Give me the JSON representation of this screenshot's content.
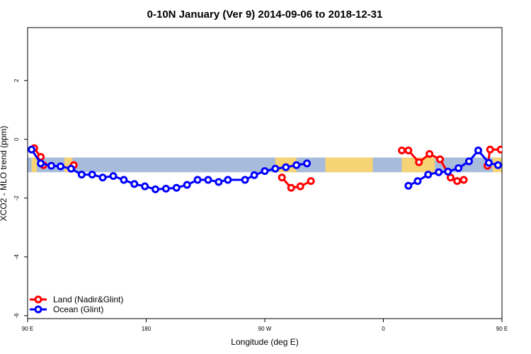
{
  "chart_data": {
    "type": "line",
    "title": "0-10N January (Ver 9)   2014-09-06 to 2018-12-31",
    "xlabel": "Longitude (deg E)",
    "ylabel": "XCO2 - MLO trend (ppm)",
    "xlim": [
      90,
      450
    ],
    "ylim": [
      -6.1,
      3.8
    ],
    "x_ticks": [
      {
        "value": 90,
        "label": "90 E"
      },
      {
        "value": 180,
        "label": "180"
      },
      {
        "value": 270,
        "label": "90 W"
      },
      {
        "value": 360,
        "label": "0"
      },
      {
        "value": 450,
        "label": "90 E"
      }
    ],
    "y_ticks": [
      {
        "value": -6,
        "label": "-6"
      },
      {
        "value": -4,
        "label": "-4"
      },
      {
        "value": -2,
        "label": "-2"
      },
      {
        "value": 0,
        "label": "0"
      },
      {
        "value": 2,
        "label": "2"
      }
    ],
    "latitude_band": {
      "label": "0-10N",
      "ymin": -1.12,
      "ymax": -0.62,
      "ocean_color": "#a7bbdb",
      "land_color": "#f6d374"
    },
    "land_spans": [
      [
        93,
        97
      ],
      [
        118,
        124
      ],
      [
        278,
        294
      ],
      [
        316,
        352
      ],
      [
        374,
        399
      ],
      [
        443,
        450
      ]
    ],
    "legend": {
      "placement": "bottom-left"
    },
    "series": [
      {
        "name": "Land (Nadir&Glint)",
        "color": "#ff0000",
        "segments": [
          [
            [
              95,
              -0.3
            ],
            [
              100,
              -0.6
            ],
            [
              102,
              -0.88
            ]
          ],
          [
            [
              125,
              -0.88
            ]
          ],
          [
            [
              283,
              -1.3
            ],
            [
              290,
              -1.65
            ],
            [
              297,
              -1.6
            ],
            [
              305,
              -1.42
            ]
          ],
          [
            [
              374,
              -0.38
            ],
            [
              379,
              -0.38
            ],
            [
              387,
              -0.78
            ],
            [
              395,
              -0.5
            ],
            [
              403,
              -0.68
            ],
            [
              411,
              -1.3
            ],
            [
              416,
              -1.42
            ],
            [
              421,
              -1.38
            ]
          ],
          [
            [
              439,
              -0.9
            ],
            [
              441,
              -0.35
            ],
            [
              449,
              -0.35
            ],
            [
              454,
              -0.3
            ],
            [
              458,
              -0.6
            ]
          ],
          [
            [
              477,
              -0.88
            ]
          ]
        ]
      },
      {
        "name": "Ocean (Glint)",
        "color": "#0000ff",
        "segments": [
          [
            [
              93,
              -0.35
            ],
            [
              100,
              -0.82
            ],
            [
              108,
              -0.9
            ],
            [
              115,
              -0.92
            ],
            [
              123,
              -1.0
            ],
            [
              131,
              -1.2
            ],
            [
              139,
              -1.2
            ],
            [
              147,
              -1.3
            ],
            [
              155,
              -1.25
            ],
            [
              163,
              -1.38
            ],
            [
              171,
              -1.52
            ],
            [
              179,
              -1.6
            ],
            [
              187,
              -1.7
            ],
            [
              195,
              -1.68
            ],
            [
              203,
              -1.65
            ],
            [
              211,
              -1.55
            ],
            [
              219,
              -1.38
            ],
            [
              227,
              -1.38
            ],
            [
              235,
              -1.45
            ],
            [
              242,
              -1.38
            ],
            [
              255,
              -1.38
            ],
            [
              262,
              -1.22
            ],
            [
              270,
              -1.08
            ],
            [
              278,
              -1.0
            ],
            [
              286,
              -0.95
            ],
            [
              294,
              -0.88
            ],
            [
              302,
              -0.82
            ]
          ],
          [
            [
              379,
              -1.58
            ],
            [
              386,
              -1.42
            ],
            [
              394,
              -1.2
            ],
            [
              402,
              -1.12
            ],
            [
              409,
              -1.1
            ],
            [
              417,
              -0.98
            ],
            [
              425,
              -0.75
            ],
            [
              432,
              -0.38
            ],
            [
              440,
              -0.8
            ],
            [
              447,
              -0.88
            ],
            [
              455,
              -0.95
            ],
            [
              463,
              -1.0
            ],
            [
              470,
              -1.05
            ],
            [
              478,
              -1.2
            ],
            [
              486,
              -1.25
            ],
            [
              493,
              -1.3
            ],
            [
              501,
              -1.28
            ]
          ]
        ]
      }
    ]
  }
}
